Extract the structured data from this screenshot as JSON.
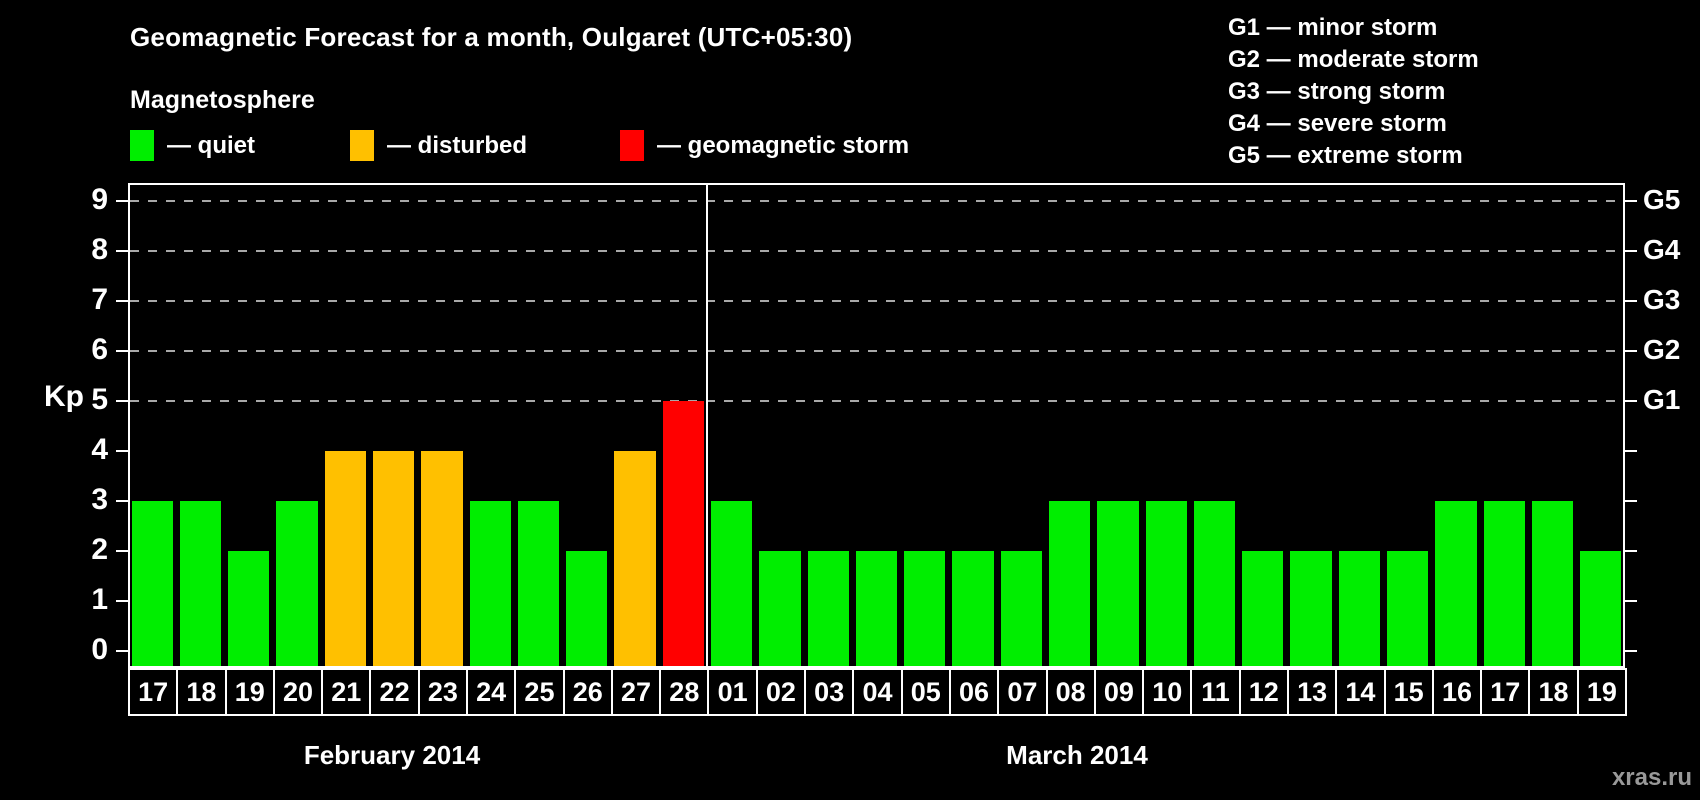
{
  "title": "Geomagnetic Forecast for a month, Oulgaret (UTC+05:30)",
  "legend": {
    "heading": "Magnetosphere",
    "items": [
      {
        "key": "quiet",
        "label": "— quiet",
        "color": "#00ee00"
      },
      {
        "key": "disturbed",
        "label": "— disturbed",
        "color": "#ffc000"
      },
      {
        "key": "storm",
        "label": "— geomagnetic storm",
        "color": "#ff0000"
      }
    ]
  },
  "storm_scale_legend": [
    "G1 — minor storm",
    "G2 — moderate storm",
    "G3 — strong storm",
    "G4 — severe storm",
    "G5 — extreme storm"
  ],
  "watermark": "xras.ru",
  "chart_data": {
    "type": "bar",
    "ylabel": "Kp",
    "ylim": [
      0,
      9
    ],
    "yticks": [
      0,
      1,
      2,
      3,
      4,
      5,
      6,
      7,
      8,
      9
    ],
    "gridlines_at_kp": [
      5,
      6,
      7,
      8,
      9
    ],
    "grid": "dashed horizontal at storm levels only",
    "right_axis_labels": [
      {
        "label": "G1",
        "kp": 5
      },
      {
        "label": "G2",
        "kp": 6
      },
      {
        "label": "G3",
        "kp": 7
      },
      {
        "label": "G4",
        "kp": 8
      },
      {
        "label": "G5",
        "kp": 9
      }
    ],
    "color_rule": "Kp<=3 quiet, Kp=4 disturbed, Kp>=5 geomagnetic storm",
    "series_colors": {
      "quiet": "#00ee00",
      "disturbed": "#ffc000",
      "storm": "#ff0000"
    },
    "months": [
      {
        "label": "February 2014",
        "days": [
          "17",
          "18",
          "19",
          "20",
          "21",
          "22",
          "23",
          "24",
          "25",
          "26",
          "27",
          "28"
        ],
        "values": [
          3,
          3,
          2,
          3,
          4,
          4,
          4,
          3,
          3,
          2,
          4,
          5
        ]
      },
      {
        "label": "March 2014",
        "days": [
          "01",
          "02",
          "03",
          "04",
          "05",
          "06",
          "07",
          "08",
          "09",
          "10",
          "11",
          "12",
          "13",
          "14",
          "15",
          "16",
          "17",
          "18",
          "19"
        ],
        "values": [
          3,
          2,
          2,
          2,
          2,
          2,
          2,
          3,
          3,
          3,
          3,
          2,
          2,
          2,
          2,
          3,
          3,
          3,
          2
        ]
      }
    ]
  }
}
